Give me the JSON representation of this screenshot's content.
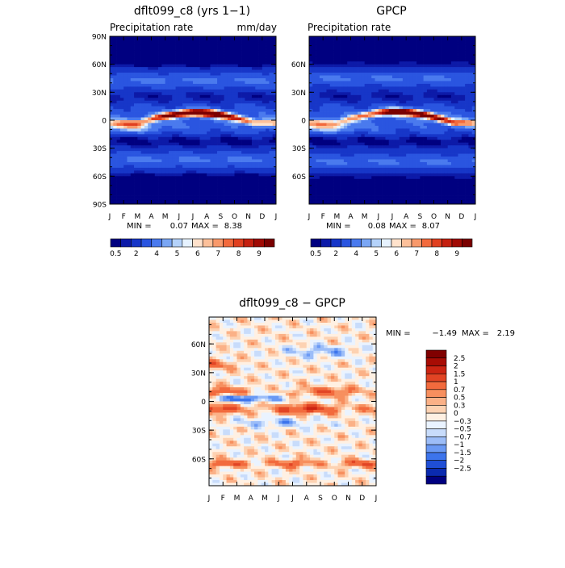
{
  "colors": {
    "prcp_scale": [
      "#000080",
      "#0d1aa8",
      "#1736c8",
      "#2a55e0",
      "#4a7aee",
      "#7aa6f4",
      "#b4d2fa",
      "#e6f2ff",
      "#ffe2cc",
      "#fcc09a",
      "#f8996b",
      "#f26a3d",
      "#e04020",
      "#c42010",
      "#a00a04",
      "#7a0000"
    ],
    "diff_scale": [
      "#000080",
      "#0a2ab0",
      "#1f4ed6",
      "#3c74ec",
      "#6a99f4",
      "#9cbdf8",
      "#c8dcfb",
      "#eaf3ff",
      "#fff0e2",
      "#fdd2b2",
      "#fbb187",
      "#f78f5e",
      "#f26a3d",
      "#e24424",
      "#cc2412",
      "#a80c04",
      "#800000"
    ]
  },
  "chart_data": [
    {
      "type": "heatmap",
      "title": "dflt099_c8 (yrs 1−1)",
      "subtitle_left": "Precipitation rate",
      "subtitle_right": "mm/day",
      "x": [
        "J",
        "F",
        "M",
        "A",
        "M",
        "J",
        "J",
        "A",
        "S",
        "O",
        "N",
        "D",
        "J"
      ],
      "y_labels": [
        "90N",
        "60N",
        "30N",
        "0",
        "30S",
        "60S",
        "90S"
      ],
      "y_values": [
        90,
        60,
        30,
        0,
        -30,
        -60,
        -90
      ],
      "min_label": "MIN =",
      "min": "0.07",
      "max_label": "MAX =",
      "max": "8.38",
      "legend_labels": [
        "0.5",
        "2",
        "4",
        "5",
        "6",
        "7",
        "8",
        "9"
      ],
      "itcz": {
        "lat_start": -3,
        "lat_peak": 8,
        "peak_month": 6.5,
        "amplitude": 9
      },
      "storm_track_lat": [
        43,
        -43
      ]
    },
    {
      "type": "heatmap",
      "title": "GPCP",
      "subtitle_left": "Precipitation rate",
      "subtitle_right": "",
      "x": [
        "J",
        "F",
        "M",
        "A",
        "M",
        "J",
        "J",
        "A",
        "S",
        "O",
        "N",
        "D",
        "J"
      ],
      "y_labels": [
        "60N",
        "30N",
        "0",
        "30S",
        "60S"
      ],
      "y_values": [
        60,
        30,
        0,
        -30,
        -60
      ],
      "min_label": "MIN =",
      "min": "0.08",
      "max_label": "MAX =",
      "max": "8.07",
      "legend_labels": [
        "0.5",
        "2",
        "4",
        "5",
        "6",
        "7",
        "8",
        "9"
      ],
      "itcz": {
        "lat_start": -3,
        "lat_peak": 9,
        "peak_month": 7.5,
        "amplitude": 8.5
      },
      "storm_track_lat": [
        45,
        -45
      ]
    },
    {
      "type": "heatmap",
      "title": "dflt099_c8 − GPCP",
      "x": [
        "J",
        "F",
        "M",
        "A",
        "M",
        "J",
        "J",
        "A",
        "S",
        "O",
        "N",
        "D",
        "J"
      ],
      "y_labels": [
        "60N",
        "30N",
        "0",
        "30S",
        "60S"
      ],
      "y_values": [
        60,
        30,
        0,
        -30,
        -60
      ],
      "min_label": "MIN =",
      "min": "−1.49",
      "max_label": "MAX =",
      "max": "2.19",
      "legend_labels": [
        "2.5",
        "2",
        "1.5",
        "1",
        "0.7",
        "0.5",
        "0.3",
        "0",
        "−0.3",
        "−0.5",
        "−0.7",
        "−1",
        "−1.5",
        "−2",
        "−2.5"
      ],
      "features": {
        "neg_equator_lat": 3,
        "neg_equator_month": 2.5,
        "pos_south_lat": -8,
        "pos_north_lat": 10
      }
    }
  ]
}
